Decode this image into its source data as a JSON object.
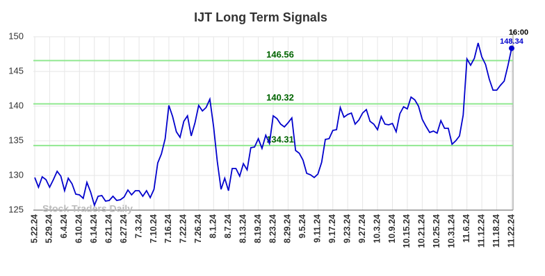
{
  "chart_data": {
    "type": "line",
    "title": "IJT Long Term Signals",
    "watermark": "Stock Traders Daily",
    "time_label": "16:00",
    "categories": [
      "5.22.24",
      null,
      null,
      null,
      "5.29.24",
      null,
      null,
      null,
      "6.4.24",
      null,
      null,
      null,
      "6.10.24",
      null,
      null,
      null,
      "6.14.24",
      null,
      null,
      null,
      "6.21.24",
      null,
      null,
      null,
      "6.27.24",
      null,
      null,
      null,
      "7.3.24",
      null,
      null,
      null,
      "7.10.24",
      null,
      null,
      null,
      "7.16.24",
      null,
      null,
      null,
      "7.22.24",
      null,
      null,
      null,
      "7.26.24",
      null,
      null,
      null,
      "8.1.24",
      null,
      null,
      null,
      "8.7.24",
      null,
      null,
      null,
      "8.13.24",
      null,
      null,
      null,
      "8.19.24",
      null,
      null,
      null,
      "8.23.24",
      null,
      null,
      null,
      "8.29.24",
      null,
      null,
      null,
      "9.5.24",
      null,
      null,
      null,
      "9.11.24",
      null,
      null,
      null,
      "9.17.24",
      null,
      null,
      null,
      "9.23.24",
      null,
      null,
      null,
      "9.27.24",
      null,
      null,
      null,
      "10.3.24",
      null,
      null,
      null,
      "10.9.24",
      null,
      null,
      null,
      "10.15.24",
      null,
      null,
      null,
      "10.21.24",
      null,
      null,
      null,
      "10.25.24",
      null,
      null,
      null,
      "10.31.24",
      null,
      null,
      null,
      "11.6.24",
      null,
      null,
      null,
      "11.12.24",
      null,
      null,
      null,
      "11.18.24",
      null,
      null,
      null,
      "11.22.24"
    ],
    "values": [
      129.7,
      128.3,
      129.8,
      129.4,
      128.3,
      129.4,
      130.6,
      129.9,
      127.8,
      129.6,
      128.8,
      127.3,
      127.2,
      126.7,
      129.0,
      127.6,
      125.7,
      127.0,
      127.1,
      126.3,
      126.4,
      127.0,
      126.4,
      126.5,
      126.9,
      127.9,
      127.2,
      127.8,
      127.8,
      127.0,
      127.8,
      126.8,
      128.0,
      131.8,
      133.1,
      135.3,
      140.1,
      138.5,
      136.3,
      135.5,
      137.8,
      138.6,
      135.7,
      137.6,
      140.1,
      139.3,
      139.8,
      141.0,
      137.0,
      132.0,
      128.0,
      129.6,
      127.8,
      131.0,
      131.0,
      129.9,
      131.7,
      130.8,
      134.0,
      134.1,
      135.3,
      133.9,
      135.8,
      134.6,
      138.6,
      138.2,
      137.4,
      137.0,
      137.6,
      138.3,
      133.6,
      133.2,
      132.2,
      130.3,
      130.1,
      129.7,
      130.2,
      131.9,
      135.2,
      135.3,
      136.5,
      136.6,
      139.8,
      138.4,
      138.8,
      139.0,
      137.4,
      138.0,
      139.0,
      139.5,
      137.8,
      137.4,
      136.6,
      138.5,
      137.4,
      137.3,
      137.5,
      136.3,
      138.9,
      139.9,
      139.6,
      141.3,
      140.9,
      140.0,
      138.1,
      137.1,
      136.2,
      136.4,
      136.1,
      137.9,
      136.8,
      136.8,
      134.5,
      135.0,
      135.7,
      138.7,
      146.8,
      145.9,
      146.9,
      149.1,
      147.1,
      146.0,
      143.9,
      142.3,
      142.3,
      143.0,
      143.6,
      145.8,
      148.34
    ],
    "color": "#0000cc",
    "levels": [
      146.56,
      140.32,
      134.31
    ],
    "level_color": "#90e890",
    "level_label_color": "#006400",
    "ylim": [
      125,
      150
    ],
    "yticks": [
      125,
      130,
      135,
      140,
      145,
      150
    ],
    "grid": true
  }
}
